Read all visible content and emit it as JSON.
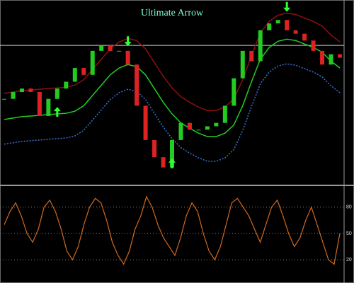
{
  "chart_data": [
    {
      "type": "candle-line",
      "title": "Ultimate Arrow",
      "title_color": "#7fffd4",
      "ylim": [
        0.788,
        0.8011
      ],
      "price": {
        "up_color": "#22cc22",
        "down_color": "#dd2222",
        "values": [
          0.7941,
          0.7946,
          0.79485,
          0.7946,
          0.79285,
          0.7941,
          0.79485,
          0.79535,
          0.79635,
          0.79585,
          0.7976,
          0.798,
          0.7976,
          0.7976,
          0.7966,
          0.7936,
          0.7911,
          0.78985,
          0.7891,
          0.7911,
          0.79235,
          0.79185,
          0.79185,
          0.7921,
          0.79235,
          0.7936,
          0.7956,
          0.7976,
          0.79685,
          0.7991,
          0.7996,
          0.79985,
          0.7991,
          0.79885,
          0.79835,
          0.7976,
          0.7966,
          0.79735,
          0.7971
        ]
      },
      "series": [
        {
          "color": "#8b1010",
          "dash": false,
          "values": [
            0.7945,
            0.7946,
            0.7947,
            0.79475,
            0.7948,
            0.79485,
            0.7949,
            0.79495,
            0.7951,
            0.7955,
            0.79625,
            0.797,
            0.79775,
            0.79825,
            0.7985,
            0.79835,
            0.79775,
            0.79675,
            0.79575,
            0.7949,
            0.79425,
            0.79385,
            0.7935,
            0.79325,
            0.79325,
            0.7935,
            0.7941,
            0.7955,
            0.79725,
            0.7989,
            0.79975,
            0.8002,
            0.80035,
            0.80025,
            0.8,
            0.79975,
            0.7994,
            0.79875,
            0.79825
          ]
        },
        {
          "color": "#22cc22",
          "dash": false,
          "values": [
            0.7926,
            0.7927,
            0.7928,
            0.79285,
            0.7929,
            0.79295,
            0.793,
            0.79305,
            0.7932,
            0.7936,
            0.79435,
            0.7951,
            0.79585,
            0.79635,
            0.7966,
            0.79645,
            0.79585,
            0.79485,
            0.79385,
            0.793,
            0.79235,
            0.79195,
            0.7916,
            0.79135,
            0.79135,
            0.7916,
            0.7922,
            0.7936,
            0.79535,
            0.797,
            0.79785,
            0.7983,
            0.79845,
            0.79835,
            0.7981,
            0.79785,
            0.7975,
            0.79685,
            0.79635
          ]
        },
        {
          "color": "#3a6fd0",
          "dash": true,
          "values": [
            0.7908,
            0.7909,
            0.791,
            0.79105,
            0.7911,
            0.79115,
            0.7912,
            0.79125,
            0.7914,
            0.7918,
            0.79255,
            0.7933,
            0.79405,
            0.79455,
            0.7948,
            0.79465,
            0.79405,
            0.79305,
            0.79205,
            0.7912,
            0.79055,
            0.79015,
            0.7898,
            0.78955,
            0.78955,
            0.7898,
            0.7904,
            0.7918,
            0.79355,
            0.7952,
            0.79605,
            0.7965,
            0.79665,
            0.79655,
            0.7963,
            0.79605,
            0.7957,
            0.79505,
            0.79455
          ]
        }
      ],
      "price_line": 0.798,
      "arrow_color": "#33ff33",
      "buy_arrows": [
        6,
        19
      ],
      "sell_arrows": [
        14,
        32
      ]
    },
    {
      "type": "line",
      "ylim": [
        0,
        100
      ],
      "yticks": [
        20,
        50,
        80
      ],
      "color": "#d2691e",
      "values": [
        60,
        75,
        85,
        70,
        50,
        40,
        55,
        80,
        88,
        75,
        55,
        30,
        20,
        35,
        60,
        80,
        90,
        85,
        65,
        40,
        25,
        15,
        30,
        55,
        70,
        92,
        80,
        60,
        45,
        35,
        25,
        45,
        70,
        85,
        75,
        50,
        30,
        20,
        35,
        60,
        85,
        90,
        80,
        70,
        55,
        40,
        60,
        80,
        88,
        70,
        50,
        35,
        45,
        65,
        80,
        60,
        40,
        20,
        15,
        50
      ]
    }
  ]
}
